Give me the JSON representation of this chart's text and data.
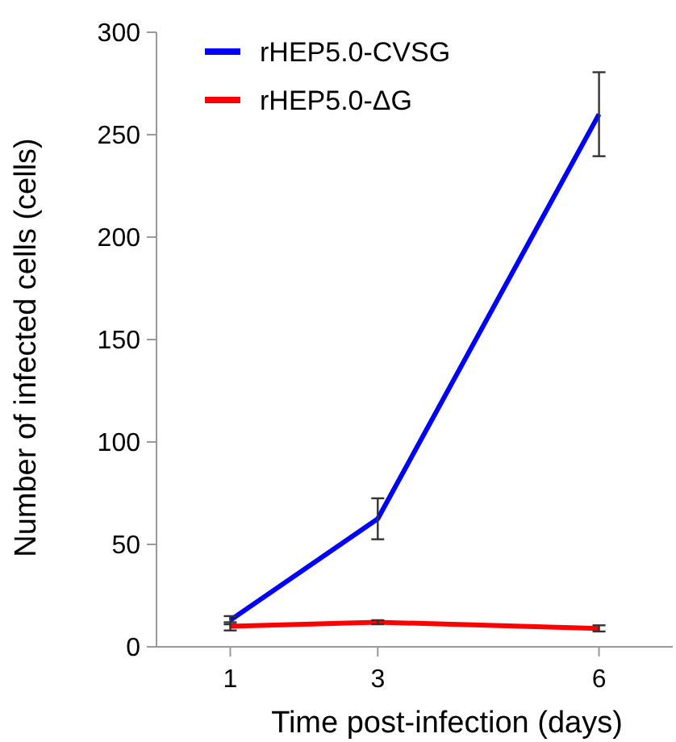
{
  "chart_data": {
    "type": "line",
    "xlabel": "Time post-infection (days)",
    "ylabel": "Number of infected cells (cells)",
    "x": [
      1,
      3,
      6
    ],
    "xlim": [
      0,
      7
    ],
    "xticks": [
      1,
      3,
      6
    ],
    "ylim": [
      0,
      300
    ],
    "yticks": [
      0,
      50,
      100,
      150,
      200,
      250,
      300
    ],
    "legend": "top left",
    "grid": false,
    "marker": "none",
    "line_style": "solid",
    "series": [
      {
        "name": "rHEP5.0-CVSG",
        "color": "#0000ff",
        "values": [
          13,
          62.5,
          260
        ],
        "errors": [
          2,
          10,
          20.5
        ]
      },
      {
        "name": "rHEP5.0-ΔG",
        "color": "#ff0000",
        "values": [
          10,
          12,
          9
        ],
        "errors": [
          2,
          1,
          1.5
        ]
      }
    ]
  }
}
